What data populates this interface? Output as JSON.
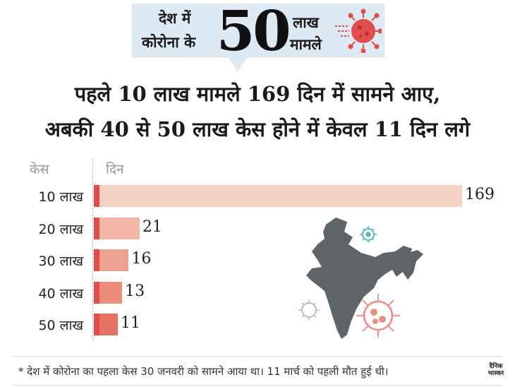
{
  "header": {
    "line1": "देश में",
    "line2": "कोरोना के",
    "number": "50",
    "line3": "लाख",
    "line4": "मामले"
  },
  "headline": {
    "line1": "पहले 10 लाख मामले 169 दिन में सामने आए,",
    "line2": "अबकी 40 से 50 लाख केस होने में केवल 11 दिन लगे"
  },
  "chart_data": {
    "type": "bar",
    "orientation": "horizontal",
    "ylabel": "केस",
    "xlabel": "दिन",
    "categories": [
      "10 लाख",
      "20 लाख",
      "30 लाख",
      "40 लाख",
      "50 लाख"
    ],
    "values": [
      169,
      21,
      16,
      13,
      11
    ],
    "colors": [
      "#f6d1c6",
      "#f3b7a5",
      "#efa291",
      "#ec8d7c",
      "#e67263"
    ],
    "accent": "#e24c4a",
    "grid": false
  },
  "footnote": "* देश में कोरोना का पहला केस 30 जनवरी को सामने आया था। 11 मार्च को पहली मौत हुई थी।",
  "logo": {
    "line1": "दैनिक",
    "line2": "भास्कर"
  },
  "icons": [
    "coronavirus-icon",
    "india-map"
  ]
}
